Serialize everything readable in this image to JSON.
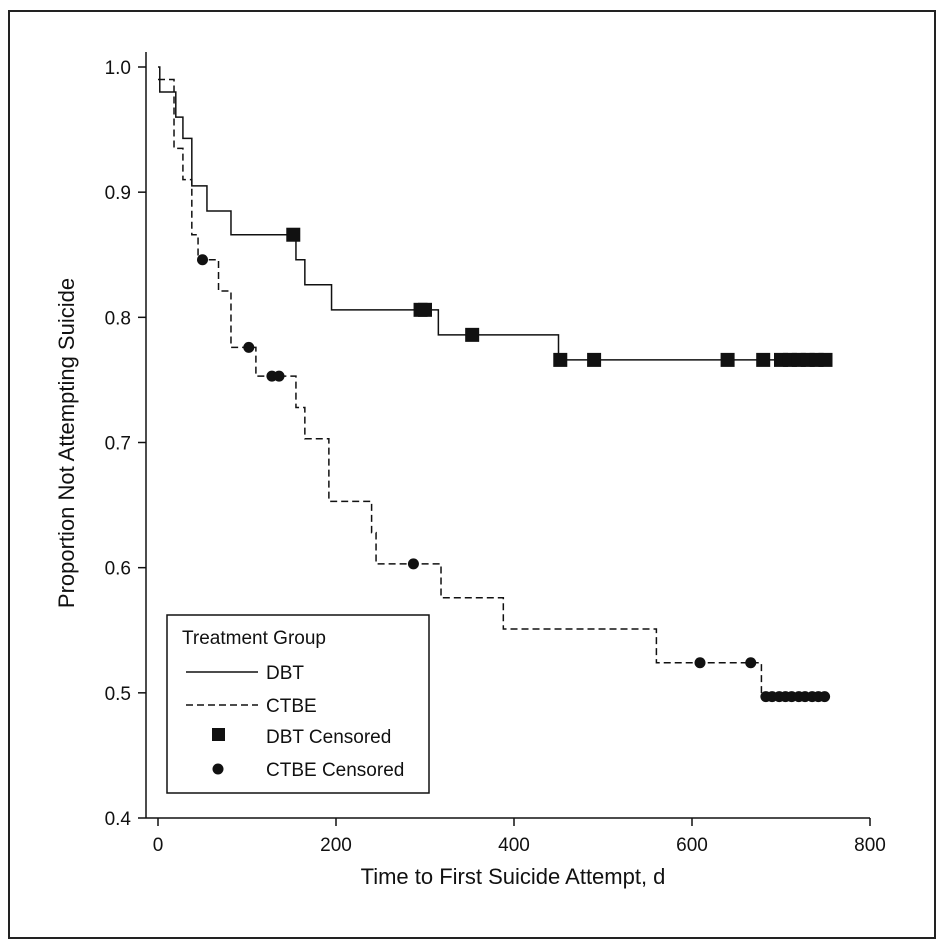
{
  "chart_data": {
    "type": "line",
    "title": "",
    "xlabel": "Time to First Suicide Attempt, d",
    "ylabel": "Proportion Not Attempting Suicide",
    "xlim": [
      0,
      800
    ],
    "ylim": [
      0.4,
      1.0
    ],
    "x_ticks": [
      "0",
      "200",
      "400",
      "600",
      "800"
    ],
    "y_ticks": [
      "0.4",
      "0.5",
      "0.6",
      "0.7",
      "0.8",
      "0.9",
      "1.0"
    ],
    "grid": false,
    "legend": {
      "title": "Treatment Group",
      "position": "bottom-left",
      "entries": [
        "DBT",
        "CTBE",
        "DBT Censored",
        "CTBE Censored"
      ]
    },
    "series": [
      {
        "name": "DBT",
        "line_style": "solid",
        "steps": [
          [
            0,
            1.0
          ],
          [
            2,
            0.98
          ],
          [
            20,
            0.96
          ],
          [
            28,
            0.943
          ],
          [
            38,
            0.905
          ],
          [
            55,
            0.885
          ],
          [
            82,
            0.866
          ],
          [
            155,
            0.846
          ],
          [
            165,
            0.826
          ],
          [
            195,
            0.806
          ],
          [
            315,
            0.786
          ],
          [
            450,
            0.766
          ],
          [
            750,
            0.766
          ]
        ],
        "censored": [
          152,
          295,
          300,
          353,
          452,
          490,
          640,
          680,
          700,
          710,
          720,
          730,
          740,
          750
        ]
      },
      {
        "name": "CTBE",
        "line_style": "dashed",
        "steps": [
          [
            0,
            0.99
          ],
          [
            18,
            0.935
          ],
          [
            28,
            0.91
          ],
          [
            38,
            0.866
          ],
          [
            45,
            0.846
          ],
          [
            68,
            0.821
          ],
          [
            82,
            0.776
          ],
          [
            110,
            0.753
          ],
          [
            155,
            0.728
          ],
          [
            165,
            0.703
          ],
          [
            192,
            0.653
          ],
          [
            240,
            0.628
          ],
          [
            245,
            0.603
          ],
          [
            318,
            0.576
          ],
          [
            388,
            0.551
          ],
          [
            560,
            0.524
          ],
          [
            678,
            0.497
          ],
          [
            750,
            0.497
          ]
        ],
        "censored_points": [
          [
            50,
            0.846
          ],
          [
            102,
            0.776
          ],
          [
            128,
            0.753
          ],
          [
            136,
            0.753
          ],
          [
            287,
            0.603
          ],
          [
            609,
            0.524
          ],
          [
            666,
            0.524
          ],
          [
            683,
            0.497
          ],
          [
            690,
            0.497
          ],
          [
            698,
            0.497
          ],
          [
            705,
            0.497
          ],
          [
            712,
            0.497
          ],
          [
            720,
            0.497
          ],
          [
            727,
            0.497
          ],
          [
            735,
            0.497
          ],
          [
            742,
            0.497
          ],
          [
            749,
            0.497
          ]
        ]
      }
    ]
  }
}
